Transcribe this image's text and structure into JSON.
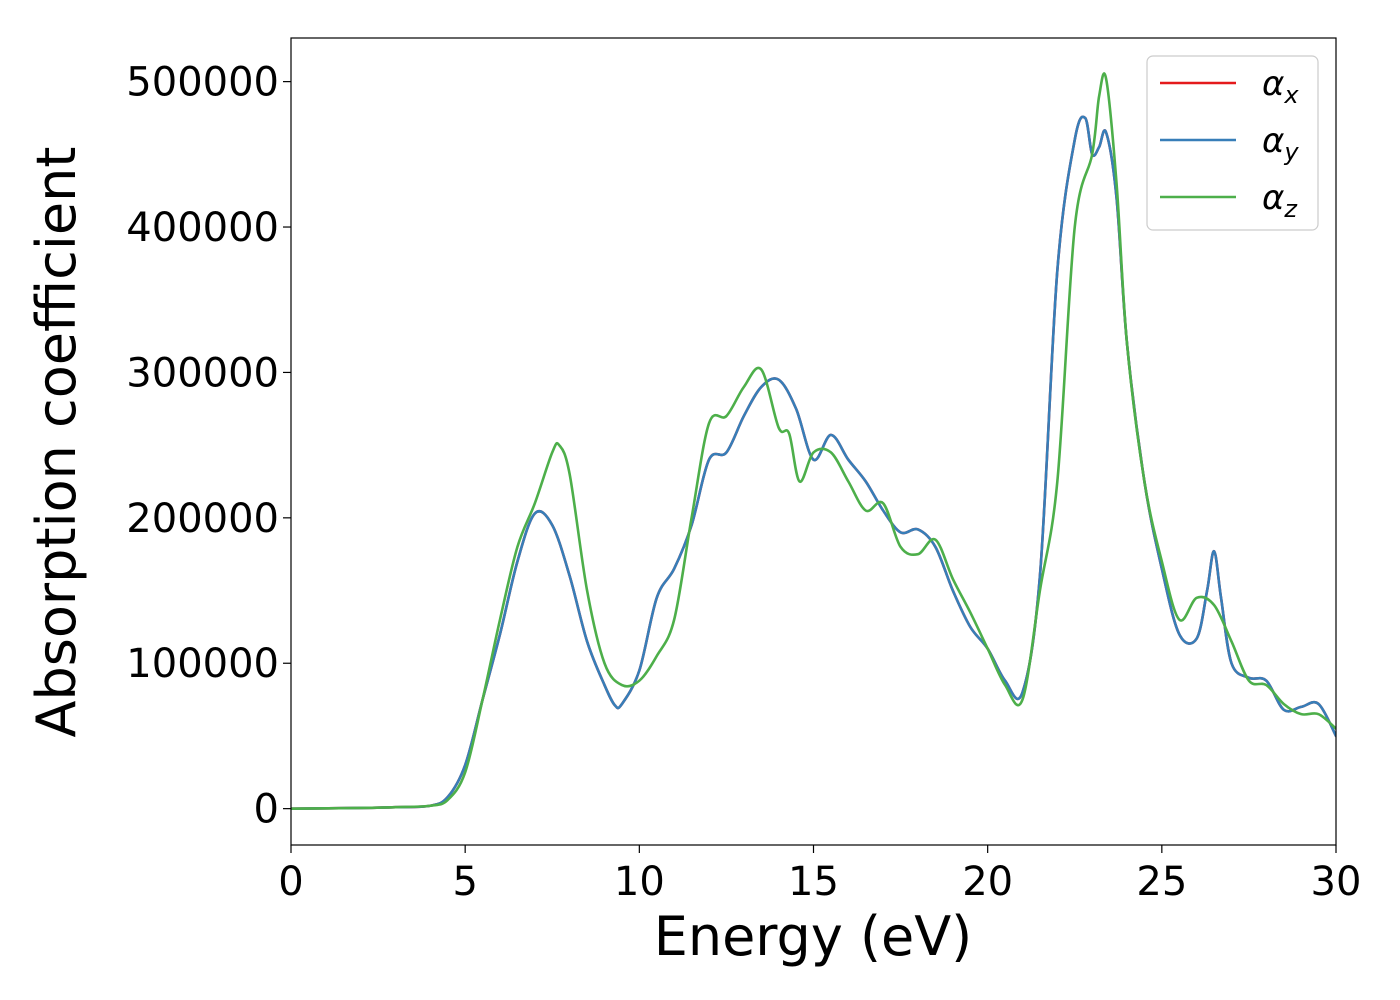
{
  "chart_data": {
    "type": "line",
    "title": "",
    "xlabel": "Energy (eV)",
    "ylabel": "Absorption coefficient",
    "xlim": [
      0,
      30
    ],
    "ylim": [
      -25000,
      530000
    ],
    "xticks": [
      0,
      5,
      10,
      15,
      20,
      25,
      30
    ],
    "yticks": [
      0,
      100000,
      200000,
      300000,
      400000,
      500000
    ],
    "xtick_labels": [
      "0",
      "5",
      "10",
      "15",
      "20",
      "25",
      "30"
    ],
    "ytick_labels": [
      "0",
      "100000",
      "200000",
      "300000",
      "400000",
      "500000"
    ],
    "grid": false,
    "legend_position": "top-right",
    "series": [
      {
        "name": "αx",
        "symbol": "α",
        "subscript": "x",
        "color": "#e41a1c",
        "x": [
          0,
          2,
          3,
          4,
          4.5,
          5,
          5.5,
          6,
          6.5,
          7,
          7.5,
          8,
          8.5,
          9,
          9.3,
          9.5,
          10,
          10.5,
          11,
          11.5,
          12,
          12.5,
          13,
          13.5,
          14,
          14.5,
          15,
          15.5,
          16,
          16.5,
          17,
          17.5,
          18,
          18.5,
          19,
          19.5,
          20,
          20.5,
          21,
          21.5,
          22,
          22.5,
          22.8,
          23,
          23.2,
          23.4,
          23.7,
          24,
          24.5,
          25,
          25.5,
          26,
          26.3,
          26.5,
          26.7,
          27,
          27.5,
          28,
          28.5,
          29,
          29.5,
          30
        ],
        "y": [
          0,
          500,
          1000,
          2000,
          8000,
          30000,
          75000,
          120000,
          170000,
          203000,
          195000,
          160000,
          115000,
          85000,
          71000,
          72000,
          95000,
          145000,
          165000,
          195000,
          240000,
          245000,
          270000,
          290000,
          295000,
          275000,
          240000,
          257000,
          240000,
          225000,
          205000,
          190000,
          192000,
          180000,
          150000,
          125000,
          110000,
          88000,
          80000,
          160000,
          370000,
          460000,
          475000,
          450000,
          455000,
          465000,
          420000,
          320000,
          225000,
          165000,
          120000,
          117000,
          150000,
          177000,
          145000,
          100000,
          90000,
          88000,
          68000,
          70000,
          72000,
          50000
        ]
      },
      {
        "name": "αy",
        "symbol": "α",
        "subscript": "y",
        "color": "#377eb8",
        "x": [
          0,
          2,
          3,
          4,
          4.5,
          5,
          5.5,
          6,
          6.5,
          7,
          7.5,
          8,
          8.5,
          9,
          9.3,
          9.5,
          10,
          10.5,
          11,
          11.5,
          12,
          12.5,
          13,
          13.5,
          14,
          14.5,
          15,
          15.5,
          16,
          16.5,
          17,
          17.5,
          18,
          18.5,
          19,
          19.5,
          20,
          20.5,
          21,
          21.5,
          22,
          22.5,
          22.8,
          23,
          23.2,
          23.4,
          23.7,
          24,
          24.5,
          25,
          25.5,
          26,
          26.3,
          26.5,
          26.7,
          27,
          27.5,
          28,
          28.5,
          29,
          29.5,
          30
        ],
        "y": [
          0,
          500,
          1000,
          2000,
          8000,
          30000,
          75000,
          120000,
          170000,
          203000,
          195000,
          160000,
          115000,
          85000,
          71000,
          72000,
          95000,
          145000,
          165000,
          195000,
          240000,
          245000,
          270000,
          290000,
          295000,
          275000,
          240000,
          257000,
          240000,
          225000,
          205000,
          190000,
          192000,
          180000,
          150000,
          125000,
          110000,
          88000,
          80000,
          160000,
          370000,
          460000,
          475000,
          450000,
          455000,
          465000,
          420000,
          320000,
          225000,
          165000,
          120000,
          117000,
          150000,
          177000,
          145000,
          100000,
          90000,
          88000,
          68000,
          70000,
          72000,
          50000
        ]
      },
      {
        "name": "αz",
        "symbol": "α",
        "subscript": "z",
        "color": "#4daf4a",
        "x": [
          0,
          2,
          3,
          4,
          4.5,
          5,
          5.5,
          6,
          6.5,
          7,
          7.5,
          7.7,
          8,
          8.5,
          9,
          9.5,
          10,
          10.5,
          11,
          11.5,
          12,
          12.5,
          13,
          13.5,
          14,
          14.3,
          14.6,
          15,
          15.5,
          16,
          16.5,
          17,
          17.5,
          18,
          18.5,
          19,
          19.5,
          20,
          20.5,
          21,
          21.5,
          22,
          22.5,
          23,
          23.2,
          23.4,
          23.7,
          24,
          24.5,
          25,
          25.5,
          26,
          26.5,
          27,
          27.5,
          28,
          28.5,
          29,
          29.5,
          30
        ],
        "y": [
          0,
          500,
          1000,
          2000,
          6000,
          25000,
          75000,
          130000,
          180000,
          210000,
          245000,
          250000,
          230000,
          150000,
          100000,
          85000,
          88000,
          105000,
          130000,
          200000,
          265000,
          270000,
          290000,
          302000,
          262000,
          258000,
          225000,
          245000,
          245000,
          225000,
          205000,
          210000,
          180000,
          175000,
          185000,
          158000,
          135000,
          110000,
          85000,
          75000,
          150000,
          225000,
          400000,
          450000,
          490000,
          502000,
          430000,
          320000,
          225000,
          170000,
          130000,
          145000,
          140000,
          115000,
          88000,
          85000,
          72000,
          65000,
          65000,
          55000
        ]
      }
    ]
  }
}
